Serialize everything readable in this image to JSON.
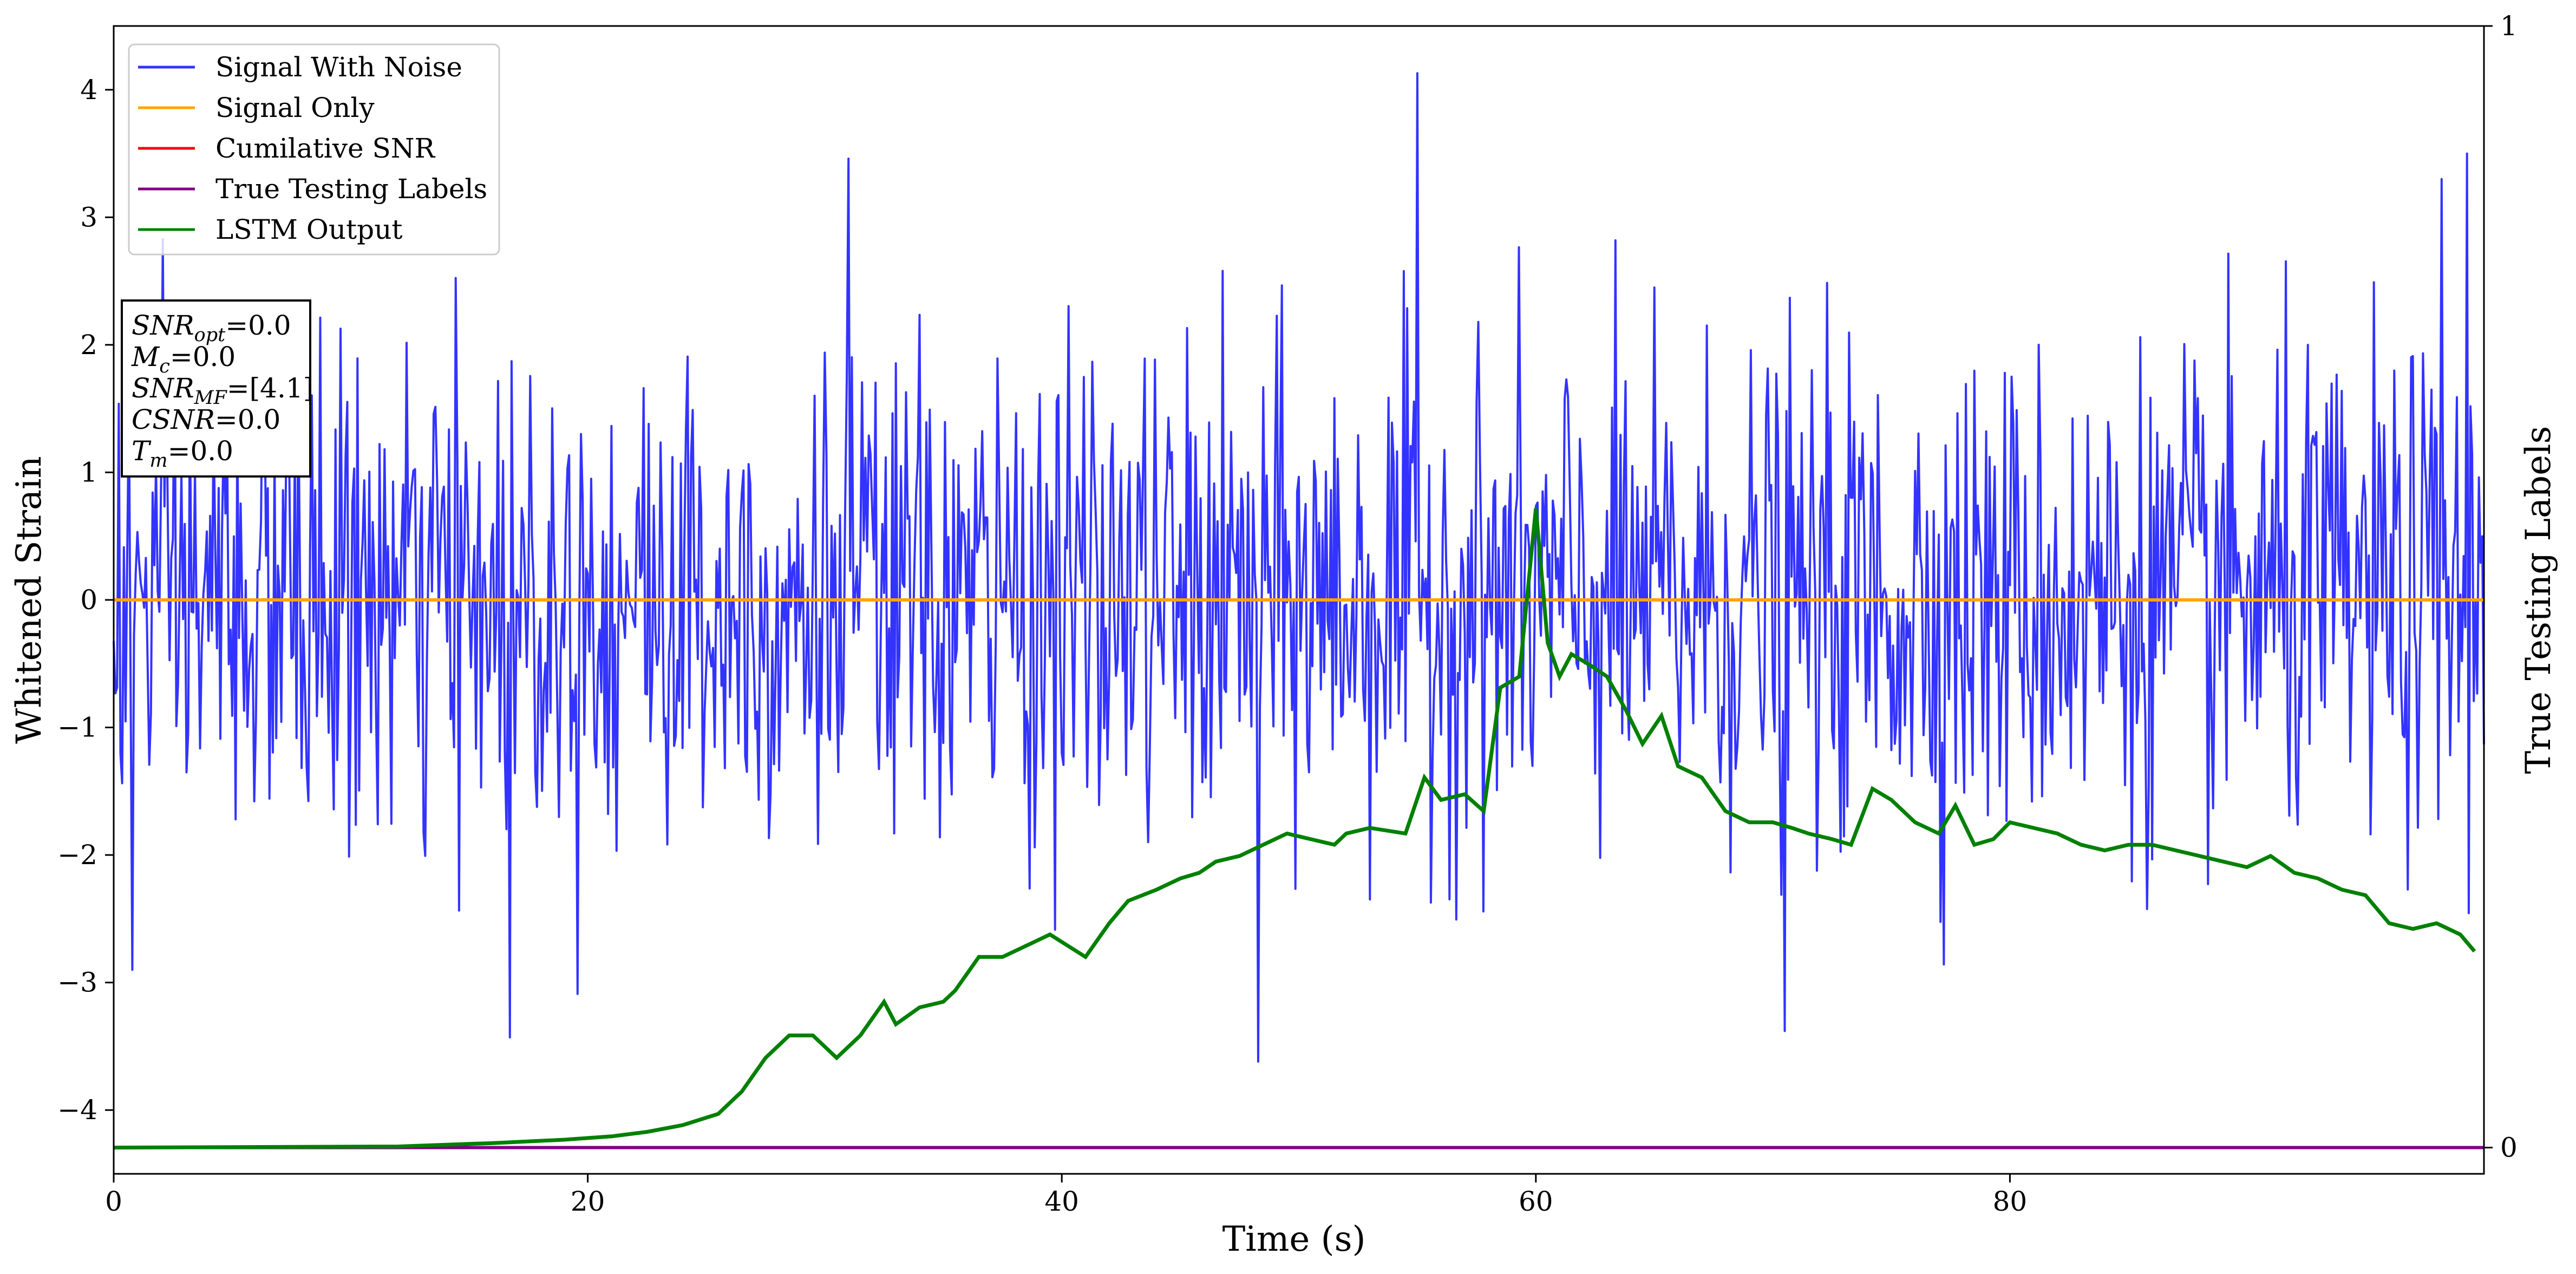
{
  "chart_data": {
    "type": "line",
    "title": "",
    "xlabel": "Time (s)",
    "ylabel": "Whitened Strain",
    "y2label": "True Testing Labels",
    "xlim": [
      0,
      100
    ],
    "ylim": [
      -4.5,
      4.5
    ],
    "y2lim": [
      -0.0234,
      1.0
    ],
    "x_ticks": [
      0,
      20,
      40,
      60,
      80
    ],
    "y_ticks": [
      -4,
      -3,
      -2,
      -1,
      0,
      1,
      2,
      3,
      4
    ],
    "y2_ticks": [
      0,
      1
    ],
    "grid": false,
    "legend_position": "top-left",
    "legend": [
      {
        "name": "Signal With Noise",
        "color": "#3333ff"
      },
      {
        "name": "Signal Only",
        "color": "#ffa500"
      },
      {
        "name": "Cumilative SNR",
        "color": "#ff0000"
      },
      {
        "name": "True Testing Labels",
        "color": "#800080"
      },
      {
        "name": "LSTM Output",
        "color": "#008000"
      }
    ],
    "annotation": {
      "lines": [
        {
          "base": "SNR",
          "sub": "opt",
          "value": "=0.0"
        },
        {
          "base": "M",
          "sub": "c",
          "value": "=0.0"
        },
        {
          "base": "SNR",
          "sub": "MF",
          "value": "=[4.1]"
        },
        {
          "base": "CSNR",
          "sub": "",
          "value": "=0.0"
        },
        {
          "base": "T",
          "sub": "m",
          "value": "=0.0"
        }
      ]
    },
    "series": [
      {
        "name": "Signal With Noise",
        "axis": "left",
        "color": "#3333ff",
        "noise": {
          "std": 0.95,
          "points": 1400,
          "x_range": [
            0,
            100
          ],
          "peaks": [
            [
              55,
              4.13
            ],
            [
              31,
              3.46
            ],
            [
              99.3,
              3.5
            ],
            [
              98.2,
              3.3
            ],
            [
              48.3,
              -3.62
            ],
            [
              16.7,
              -3.43
            ],
            [
              70.5,
              -3.38
            ],
            [
              0.8,
              -2.9
            ]
          ]
        }
      },
      {
        "name": "Signal Only",
        "axis": "left",
        "color": "#ffa500",
        "x": [
          0,
          100
        ],
        "y": [
          0,
          0
        ]
      },
      {
        "name": "True Testing Labels",
        "axis": "right",
        "color": "#800080",
        "x": [
          0,
          100
        ],
        "y": [
          0,
          0
        ]
      },
      {
        "name": "LSTM Output",
        "axis": "right",
        "color": "#008000",
        "x": [
          0,
          12,
          16,
          19,
          21,
          22.5,
          24,
          25.5,
          26.5,
          27.5,
          28.5,
          29.5,
          30.5,
          31.5,
          32.5,
          33,
          34,
          35,
          35.5,
          36.5,
          37.5,
          38.5,
          39.5,
          41,
          42,
          42.8,
          44,
          45,
          45.8,
          46.5,
          47.5,
          48.5,
          49.5,
          50.5,
          51.5,
          52,
          53,
          54.5,
          55.3,
          56,
          57,
          57.8,
          58.5,
          59.3,
          60,
          60.5,
          61,
          61.5,
          62.3,
          63,
          63.8,
          64.5,
          65.3,
          66,
          67,
          68,
          69,
          70,
          70.8,
          71.5,
          72.5,
          73.3,
          74.2,
          75,
          76,
          77,
          77.7,
          78.5,
          79.3,
          80,
          81,
          82,
          83,
          84,
          85,
          86,
          87,
          88,
          89,
          90,
          91,
          92,
          93,
          94,
          95,
          96,
          97,
          98,
          99,
          99.6
        ],
        "y": [
          0,
          0.001,
          0.004,
          0.007,
          0.01,
          0.014,
          0.02,
          0.03,
          0.05,
          0.08,
          0.1,
          0.1,
          0.08,
          0.1,
          0.13,
          0.11,
          0.125,
          0.13,
          0.14,
          0.17,
          0.17,
          0.18,
          0.19,
          0.17,
          0.2,
          0.22,
          0.23,
          0.24,
          0.245,
          0.255,
          0.26,
          0.27,
          0.28,
          0.275,
          0.27,
          0.28,
          0.285,
          0.28,
          0.33,
          0.31,
          0.315,
          0.3,
          0.41,
          0.42,
          0.57,
          0.45,
          0.42,
          0.44,
          0.43,
          0.42,
          0.39,
          0.36,
          0.385,
          0.34,
          0.33,
          0.3,
          0.29,
          0.29,
          0.285,
          0.28,
          0.275,
          0.27,
          0.32,
          0.31,
          0.29,
          0.28,
          0.305,
          0.27,
          0.275,
          0.29,
          0.285,
          0.28,
          0.27,
          0.265,
          0.27,
          0.27,
          0.265,
          0.26,
          0.255,
          0.25,
          0.26,
          0.245,
          0.24,
          0.23,
          0.225,
          0.2,
          0.195,
          0.2,
          0.19,
          0.175
        ]
      }
    ]
  }
}
